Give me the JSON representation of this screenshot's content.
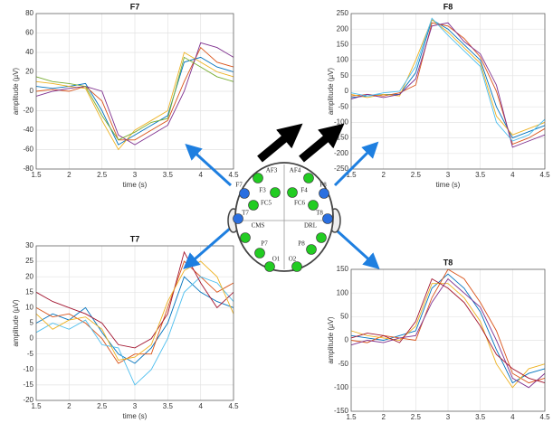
{
  "chart_data": [
    {
      "type": "line",
      "title": "F7",
      "xlabel": "time (s)",
      "ylabel": "amplitude (µV)",
      "xlim": [
        1.5,
        4.5
      ],
      "xticks": [
        1.5,
        2,
        2.5,
        3,
        3.5,
        4,
        4.5
      ],
      "ylim": [
        -80,
        80
      ],
      "yticks": [
        -80,
        -60,
        -40,
        -20,
        0,
        20,
        40,
        60,
        80
      ],
      "grid": true,
      "x": [
        1.5,
        1.75,
        2,
        2.25,
        2.5,
        2.75,
        3,
        3.25,
        3.5,
        3.75,
        4,
        4.25,
        4.5
      ],
      "series": [
        {
          "color": "#0072BD",
          "values": [
            5,
            3,
            5,
            8,
            -20,
            -55,
            -45,
            -35,
            -25,
            30,
            35,
            25,
            20
          ]
        },
        {
          "color": "#D95319",
          "values": [
            0,
            2,
            0,
            5,
            -10,
            -50,
            -50,
            -40,
            -30,
            10,
            45,
            30,
            25
          ]
        },
        {
          "color": "#EDB120",
          "values": [
            10,
            8,
            5,
            3,
            -30,
            -60,
            -40,
            -30,
            -20,
            40,
            30,
            20,
            15
          ]
        },
        {
          "color": "#7E2F8E",
          "values": [
            -5,
            0,
            3,
            5,
            0,
            -45,
            -55,
            -45,
            -35,
            0,
            50,
            45,
            35
          ]
        },
        {
          "color": "#77AC30",
          "values": [
            15,
            10,
            8,
            5,
            -25,
            -50,
            -42,
            -32,
            -28,
            35,
            25,
            15,
            10
          ]
        }
      ]
    },
    {
      "type": "line",
      "title": "F8",
      "xlabel": "time (s)",
      "ylabel": "amplitude (µV)",
      "xlim": [
        1.5,
        4.5
      ],
      "xticks": [
        1.5,
        2,
        2.5,
        3,
        3.5,
        4,
        4.5
      ],
      "ylim": [
        -250,
        250
      ],
      "yticks": [
        -250,
        -200,
        -150,
        -100,
        -50,
        0,
        50,
        100,
        150,
        200,
        250
      ],
      "grid": true,
      "x": [
        1.5,
        1.75,
        2,
        2.25,
        2.5,
        2.75,
        3,
        3.25,
        3.5,
        3.75,
        4,
        4.25,
        4.5
      ],
      "series": [
        {
          "color": "#0072BD",
          "values": [
            -20,
            -15,
            -10,
            -10,
            60,
            230,
            200,
            150,
            100,
            -50,
            -150,
            -130,
            -110
          ]
        },
        {
          "color": "#D95319",
          "values": [
            -15,
            -10,
            -15,
            -5,
            20,
            220,
            210,
            170,
            110,
            0,
            -170,
            -150,
            -120
          ]
        },
        {
          "color": "#EDB120",
          "values": [
            -10,
            -20,
            -10,
            -15,
            100,
            230,
            190,
            140,
            90,
            -80,
            -140,
            -120,
            -100
          ]
        },
        {
          "color": "#7E2F8E",
          "values": [
            -25,
            -10,
            -20,
            -10,
            40,
            210,
            220,
            160,
            120,
            20,
            -180,
            -160,
            -140
          ]
        },
        {
          "color": "#4DBEEE",
          "values": [
            -5,
            -15,
            -5,
            0,
            80,
            235,
            180,
            130,
            80,
            -100,
            -160,
            -140,
            -90
          ]
        }
      ]
    },
    {
      "type": "line",
      "title": "T7",
      "xlabel": "time (s)",
      "ylabel": "amplitude (µV)",
      "xlim": [
        1.5,
        4.5
      ],
      "xticks": [
        1.5,
        2,
        2.5,
        3,
        3.5,
        4,
        4.5
      ],
      "ylim": [
        -20,
        30
      ],
      "yticks": [
        -20,
        -15,
        -10,
        -5,
        0,
        5,
        10,
        15,
        20,
        25,
        30
      ],
      "grid": true,
      "x": [
        1.5,
        1.75,
        2,
        2.25,
        2.5,
        2.75,
        3,
        3.25,
        3.5,
        3.75,
        4,
        4.25,
        4.5
      ],
      "series": [
        {
          "color": "#0072BD",
          "values": [
            5,
            8,
            6,
            10,
            2,
            -5,
            -8,
            -3,
            5,
            20,
            15,
            12,
            10
          ]
        },
        {
          "color": "#D95319",
          "values": [
            10,
            7,
            8,
            5,
            0,
            -8,
            -5,
            -5,
            10,
            25,
            20,
            15,
            18
          ]
        },
        {
          "color": "#4DBEEE",
          "values": [
            2,
            5,
            3,
            6,
            -2,
            -3,
            -15,
            -10,
            0,
            15,
            20,
            18,
            12
          ]
        },
        {
          "color": "#A2142F",
          "values": [
            15,
            12,
            10,
            8,
            5,
            -2,
            -3,
            0,
            8,
            28,
            18,
            10,
            15
          ]
        },
        {
          "color": "#EDB120",
          "values": [
            8,
            3,
            6,
            7,
            3,
            -7,
            -6,
            -2,
            12,
            22,
            25,
            20,
            8
          ]
        }
      ]
    },
    {
      "type": "line",
      "title": "T8",
      "ylabel": "amplitude (µV)",
      "xlim": [
        1.5,
        4.5
      ],
      "xticks": [
        1.5,
        2,
        2.5,
        3,
        3.5,
        4,
        4.5
      ],
      "ylim": [
        -150,
        150
      ],
      "yticks": [
        -150,
        -100,
        -50,
        0,
        50,
        100,
        150
      ],
      "grid": true,
      "x": [
        1.5,
        1.75,
        2,
        2.25,
        2.5,
        2.75,
        3,
        3.25,
        3.5,
        3.75,
        4,
        4.25,
        4.5
      ],
      "series": [
        {
          "color": "#0072BD",
          "values": [
            10,
            5,
            0,
            10,
            20,
            110,
            140,
            110,
            60,
            -20,
            -90,
            -70,
            -60
          ]
        },
        {
          "color": "#D95319",
          "values": [
            0,
            -5,
            10,
            5,
            0,
            90,
            150,
            130,
            80,
            20,
            -70,
            -90,
            -80
          ]
        },
        {
          "color": "#EDB120",
          "values": [
            20,
            10,
            5,
            0,
            30,
            120,
            120,
            90,
            40,
            -50,
            -100,
            -60,
            -50
          ]
        },
        {
          "color": "#7E2F8E",
          "values": [
            -10,
            0,
            -5,
            5,
            10,
            80,
            130,
            100,
            70,
            0,
            -80,
            -100,
            -70
          ]
        },
        {
          "color": "#A2142F",
          "values": [
            5,
            15,
            10,
            -5,
            40,
            130,
            110,
            80,
            30,
            -30,
            -60,
            -80,
            -90
          ]
        }
      ]
    }
  ],
  "diagram": {
    "electrodes": [
      {
        "label": "AF3",
        "color": "#22cc22"
      },
      {
        "label": "AF4",
        "color": "#22cc22"
      },
      {
        "label": "F3",
        "color": "#22cc22"
      },
      {
        "label": "F4",
        "color": "#22cc22"
      },
      {
        "label": "FC5",
        "color": "#22cc22"
      },
      {
        "label": "FC6",
        "color": "#22cc22"
      },
      {
        "label": "F7",
        "color": "#2a6fe0"
      },
      {
        "label": "F8",
        "color": "#2a6fe0"
      },
      {
        "label": "T7",
        "color": "#2a6fe0"
      },
      {
        "label": "T8",
        "color": "#2a6fe0"
      },
      {
        "label": "CMS",
        "color": "#22cc22"
      },
      {
        "label": "DRL",
        "color": "#22cc22"
      },
      {
        "label": "P7",
        "color": "#22cc22"
      },
      {
        "label": "P8",
        "color": "#22cc22"
      },
      {
        "label": "O1",
        "color": "#22cc22"
      },
      {
        "label": "O2",
        "color": "#22cc22"
      }
    ]
  }
}
